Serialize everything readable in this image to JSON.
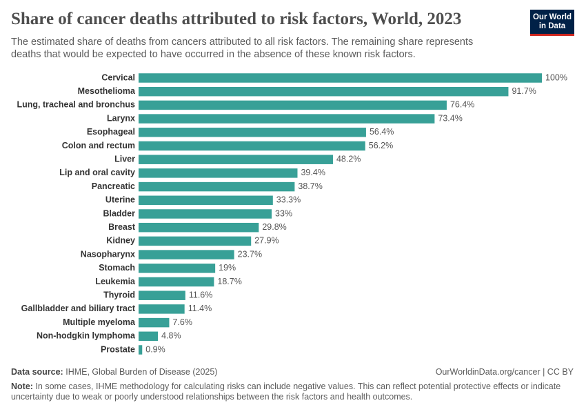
{
  "chart_data": {
    "type": "bar",
    "orientation": "horizontal",
    "title": "Share of cancer deaths attributed to risk factors, World, 2023",
    "subtitle": "The estimated share of deaths from cancers attributed to all risk factors. The remaining share represents deaths that would be expected to have occurred in the absence of these known risk factors.",
    "categories": [
      "Cervical",
      "Mesothelioma",
      "Lung, tracheal and bronchus",
      "Larynx",
      "Esophageal",
      "Colon and rectum",
      "Liver",
      "Lip and oral cavity",
      "Pancreatic",
      "Uterine",
      "Bladder",
      "Breast",
      "Kidney",
      "Nasopharynx",
      "Stomach",
      "Leukemia",
      "Thyroid",
      "Gallbladder and biliary tract",
      "Multiple myeloma",
      "Non-hodgkin lymphoma",
      "Prostate"
    ],
    "values": [
      100,
      91.7,
      76.4,
      73.4,
      56.4,
      56.2,
      48.2,
      39.4,
      38.7,
      33.3,
      33,
      29.8,
      27.9,
      23.7,
      19,
      18.7,
      11.6,
      11.4,
      7.6,
      4.8,
      0.9
    ],
    "value_labels": [
      "100%",
      "91.7%",
      "76.4%",
      "73.4%",
      "56.4%",
      "56.2%",
      "48.2%",
      "39.4%",
      "38.7%",
      "33.3%",
      "33%",
      "29.8%",
      "27.9%",
      "23.7%",
      "19%",
      "18.7%",
      "11.6%",
      "11.4%",
      "7.6%",
      "4.8%",
      "0.9%"
    ],
    "color": "#38a097"
  },
  "logo": [
    "Our World",
    "in Data"
  ],
  "footer": {
    "source_label": "Data source:",
    "source": "IHME, Global Burden of Disease (2025)",
    "url": "OurWorldinData.org/cancer | CC BY",
    "note_label": "Note:",
    "note": "In some cases, IHME methodology for calculating risks can include negative values. This can reflect potential protective effects or indicate uncertainty due to weak or poorly understood relationships between the risk factors and health outcomes."
  }
}
